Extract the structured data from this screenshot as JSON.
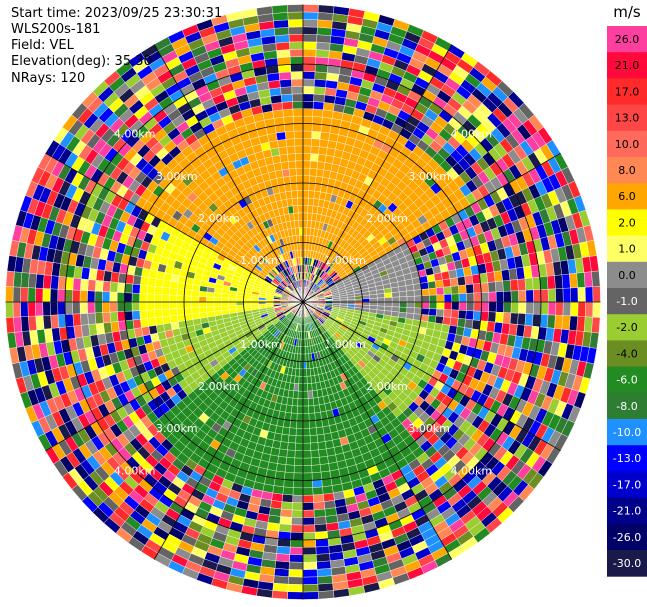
{
  "header": {
    "start_time": "Start time: 2023/09/25 23:30:31",
    "instrument": "WLS200s-181",
    "field": "Field: VEL",
    "elevation": "Elevation(deg): 35.30",
    "nrays": "NRays: 120"
  },
  "chart_data": {
    "type": "ppi",
    "title": "",
    "field": "VEL",
    "units": "m/s",
    "nrays": 120,
    "elevation_deg": 35.3,
    "range_rings_km": [
      1.0,
      2.0,
      3.0,
      4.0
    ],
    "ring_labels": [
      "1.00km",
      "2.00km",
      "3.00km",
      "4.00km"
    ],
    "max_range_km": 5.0,
    "colorbar": {
      "unit_label": "m/s",
      "ticks": [
        "26.0",
        "21.0",
        "17.0",
        "13.0",
        "10.0",
        "8.0",
        "6.0",
        "2.0",
        "1.0",
        "0.0",
        "-1.0",
        "-2.0",
        "-4.0",
        "-6.0",
        "-8.0",
        "-10.0",
        "-13.0",
        "-17.0",
        "-21.0",
        "-26.0",
        "-30.0"
      ],
      "colors": [
        "#ff3f9f",
        "#ff0a3a",
        "#ff2a2a",
        "#ff4646",
        "#ff6a5a",
        "#ff8855",
        "#ffa600",
        "#ffff00",
        "#ffff66",
        "#8c8c8c",
        "#646464",
        "#9acd32",
        "#6b8e23",
        "#228b22",
        "#2e7d32",
        "#1e90ff",
        "#0000ff",
        "#0000cd",
        "#00008b",
        "#000066",
        "#1a1a4a"
      ],
      "label_colors": [
        "#000000",
        "#000000",
        "#000000",
        "#000000",
        "#000000",
        "#000000",
        "#000000",
        "#000000",
        "#000000",
        "#000000",
        "#ffffff",
        "#000000",
        "#000000",
        "#ffffff",
        "#ffffff",
        "#ffffff",
        "#ffffff",
        "#ffffff",
        "#ffffff",
        "#ffffff",
        "#ffffff"
      ]
    },
    "sectors": [
      {
        "az_from": 300,
        "az_to": 420,
        "range_km": [
          0.8,
          3.2
        ],
        "value": 6.0
      },
      {
        "az_from": 260,
        "az_to": 300,
        "range_km": [
          0.5,
          2.8
        ],
        "value": 2.0
      },
      {
        "az_from": 60,
        "az_to": 100,
        "range_km": [
          0.5,
          2.0
        ],
        "value": 0.0
      },
      {
        "az_from": 100,
        "az_to": 140,
        "range_km": [
          0.5,
          2.5
        ],
        "value": -2.0
      },
      {
        "az_from": 140,
        "az_to": 230,
        "range_km": [
          0.3,
          3.3
        ],
        "value": -6.0
      },
      {
        "az_from": 230,
        "az_to": 260,
        "range_km": [
          0.5,
          2.5
        ],
        "value": -2.0
      }
    ],
    "noise_from_km": 3.3
  }
}
